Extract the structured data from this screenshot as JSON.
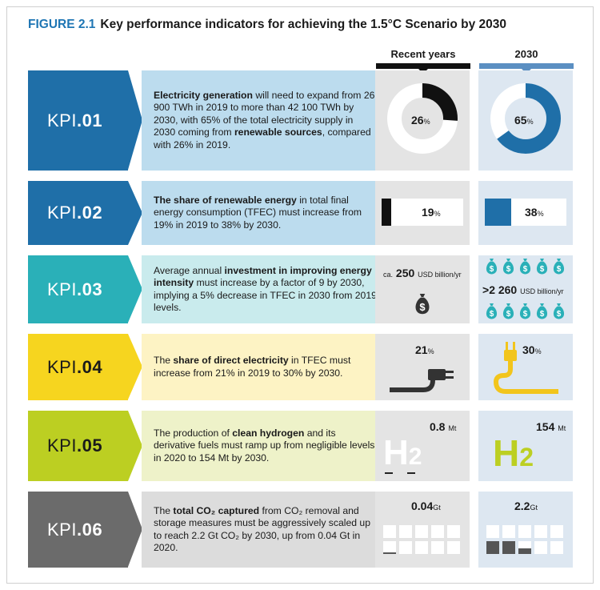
{
  "title": {
    "figure": "FIGURE 2.1",
    "text": "Key performance indicators for achieving the 1.5°C Scenario by 2030"
  },
  "columns": {
    "recent": "Recent years",
    "target": "2030"
  },
  "colors": {
    "kpi01": "#1f6fa8",
    "kpi01_bg": "#bcdcee",
    "kpi02": "#1f6fa8",
    "kpi02_bg": "#bcdcee",
    "kpi03": "#2ab0b8",
    "kpi03_bg": "#c9ebed",
    "kpi04": "#f6d51f",
    "kpi04_bg": "#fdf3c4",
    "kpi05": "#bccf22",
    "kpi05_bg": "#eef2c9",
    "kpi06": "#6b6b6b",
    "kpi06_bg": "#dcdcdc",
    "cell_recent": "#e4e4e4",
    "cell_2030": "#dde7f1",
    "blue_accent": "#1f6fa8",
    "teal_accent": "#2ab0b8",
    "yellow_accent": "#f2c51c",
    "green_accent": "#bccf22"
  },
  "kpis": [
    {
      "id": "KPI",
      "num": ".01",
      "desc": [
        {
          "b": "Electricity generation"
        },
        {
          "t": " will need to expand from 26 900 TWh in 2019 to more than 42 100 TWh by 2030, with 65% of the total electricity supply in 2030 coming from "
        },
        {
          "b": "renewable sources"
        },
        {
          "t": ", compared with 26% in 2019."
        }
      ],
      "recent": {
        "value": "26",
        "unit": "%"
      },
      "target": {
        "value": "65",
        "unit": "%"
      }
    },
    {
      "id": "KPI",
      "num": ".02",
      "desc": [
        {
          "b": "The share of renewable energy"
        },
        {
          "t": " in total final energy consumption (TFEC) must increase from 19% in 2019 to 38% by 2030."
        }
      ],
      "recent": {
        "value": "19",
        "unit": "%"
      },
      "target": {
        "value": "38",
        "unit": "%"
      }
    },
    {
      "id": "KPI",
      "num": ".03",
      "desc": [
        {
          "t": "Average annual "
        },
        {
          "b": "investment in improving energy intensity"
        },
        {
          "t": " must increase by a factor of 9 by 2030, implying a 5% decrease in TFEC in 2030 from 2019 levels."
        }
      ],
      "recent": {
        "prefix": "ca.",
        "value": "250",
        "unit": "USD billion/yr"
      },
      "target": {
        "prefix": ">",
        "value": "2 260",
        "unit": "USD billion/yr"
      }
    },
    {
      "id": "KPI",
      "num": ".04",
      "desc": [
        {
          "t": "The "
        },
        {
          "b": "share of direct electricity"
        },
        {
          "t": " in TFEC must increase from 21% in 2019 to 30% by 2030."
        }
      ],
      "recent": {
        "value": "21",
        "unit": "%"
      },
      "target": {
        "value": "30",
        "unit": "%"
      }
    },
    {
      "id": "KPI",
      "num": ".05",
      "desc": [
        {
          "t": "The production of "
        },
        {
          "b": "clean hydrogen"
        },
        {
          "t": " and its derivative fuels must ramp up from negligible levels in 2020 to 154 Mt by 2030."
        }
      ],
      "recent": {
        "value": "0.8",
        "unit": "Mt",
        "label": "H2"
      },
      "target": {
        "value": "154",
        "unit": "Mt",
        "label": "H2"
      }
    },
    {
      "id": "KPI",
      "num": ".06",
      "desc": [
        {
          "t": "The "
        },
        {
          "b": "total CO₂ captured"
        },
        {
          "t": " from CO₂ removal  and storage measures must be aggressively scaled up to reach 2.2 Gt CO₂ by 2030, up from 0.04 Gt in 2020."
        }
      ],
      "recent": {
        "value": "0.04",
        "unit": "Gt"
      },
      "target": {
        "value": "2.2",
        "unit": "Gt"
      }
    }
  ]
}
